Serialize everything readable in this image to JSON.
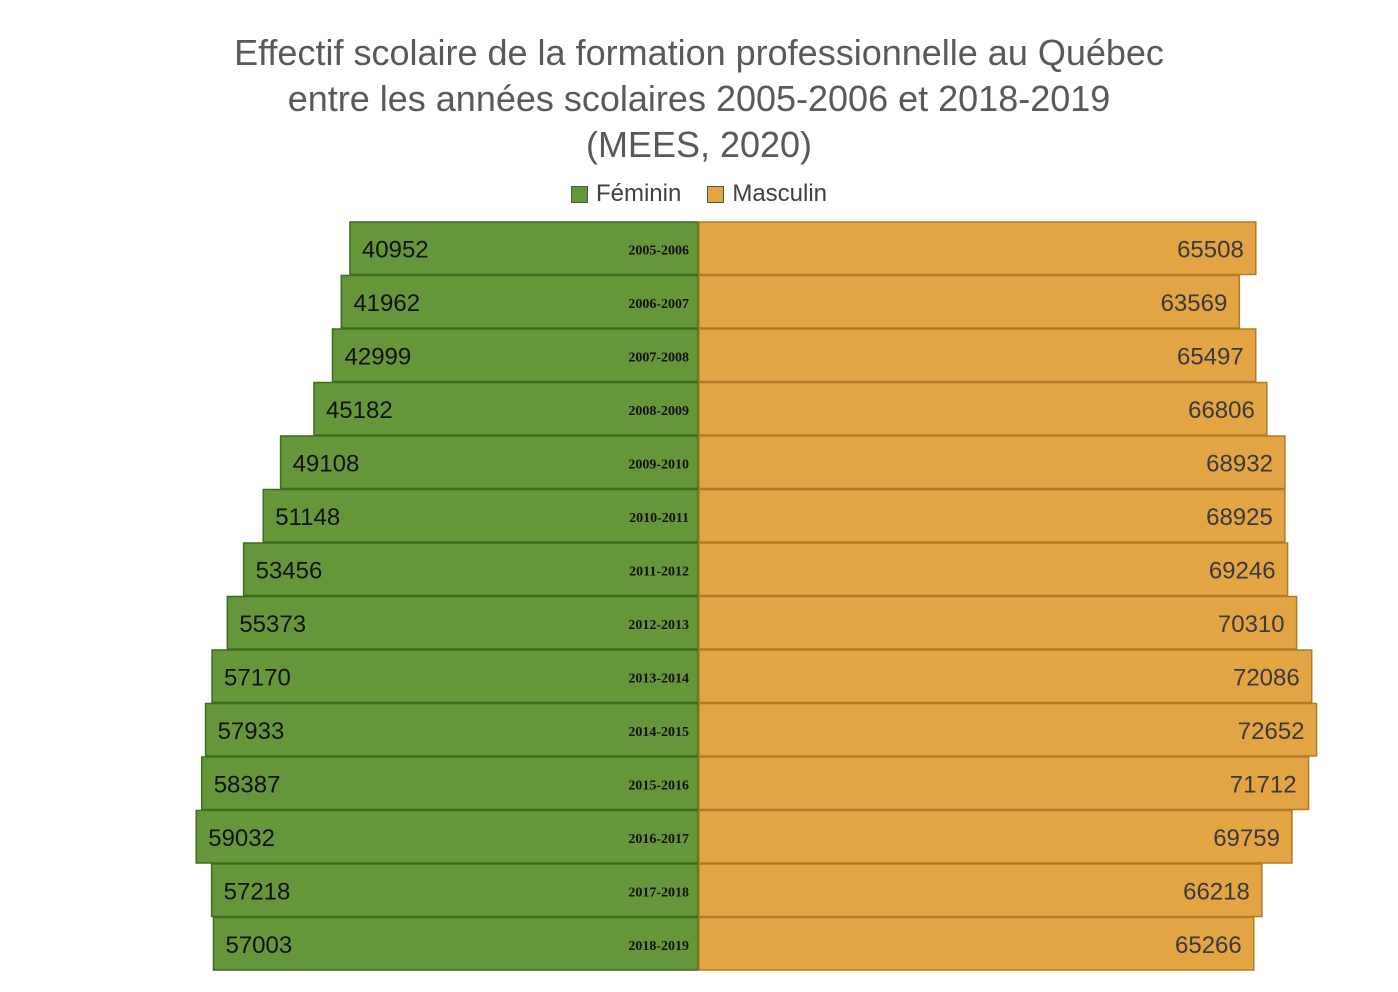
{
  "chart_data": {
    "type": "bar",
    "orientation": "horizontal-diverging",
    "title_lines": [
      "Effectif scolaire de la formation professionnelle au Québec",
      "entre les années scolaires 2005-2006 et 2018-2019",
      "(MEES, 2020)"
    ],
    "categories": [
      "2005-2006",
      "2006-2007",
      "2007-2008",
      "2008-2009",
      "2009-2010",
      "2010-2011",
      "2011-2012",
      "2012-2013",
      "2013-2014",
      "2014-2015",
      "2015-2016",
      "2016-2017",
      "2017-2018",
      "2018-2019"
    ],
    "series": [
      {
        "name": "Féminin",
        "color": "#66963a",
        "side": "left",
        "values": [
          40952,
          41962,
          42999,
          45182,
          49108,
          51148,
          53456,
          55373,
          57170,
          57933,
          58387,
          59032,
          57218,
          57003
        ]
      },
      {
        "name": "Masculin",
        "color": "#e3a444",
        "side": "right",
        "values": [
          65508,
          63569,
          65497,
          66806,
          68932,
          68925,
          69246,
          70310,
          72086,
          72652,
          71712,
          69759,
          66218,
          65266
        ]
      }
    ],
    "legend_position": "top",
    "grid": false,
    "data_labels": true
  }
}
